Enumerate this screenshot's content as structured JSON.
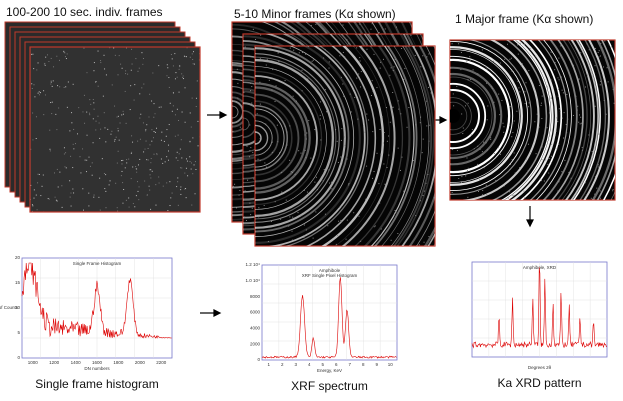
{
  "stages": [
    {
      "label": "100-200 10 sec. indiv. frames"
    },
    {
      "label": "5-10 Minor frames (Kα shown)"
    },
    {
      "label": "1 Major frame (Kα shown)"
    }
  ],
  "plots": [
    {
      "caption": "Single frame histogram",
      "title": "Single Frame Histogram",
      "x_label": "DN numbers",
      "y_label": "# of Counts",
      "x_ticks": [
        "1000",
        "1200",
        "1400",
        "1600",
        "1800",
        "2000",
        "2200"
      ],
      "y_ticks": [
        "20",
        "15",
        "10",
        "5",
        "0"
      ]
    },
    {
      "caption": "XRF spectrum",
      "title": "Amphibole",
      "subtitle": "XRF Single Pixel Histogram",
      "x_label": "Energy, KeV",
      "x_ticks": [
        "1",
        "2",
        "3",
        "4",
        "5",
        "6",
        "7",
        "8",
        "9",
        "10"
      ],
      "y_ticks": [
        "1.2 10⁴",
        "1.0 10⁴",
        "8000",
        "6000",
        "4000",
        "2000",
        "0"
      ]
    },
    {
      "caption": "Ka XRD pattern",
      "title": "Amphibole, XRD",
      "x_label": "Degrees 2θ"
    }
  ]
}
